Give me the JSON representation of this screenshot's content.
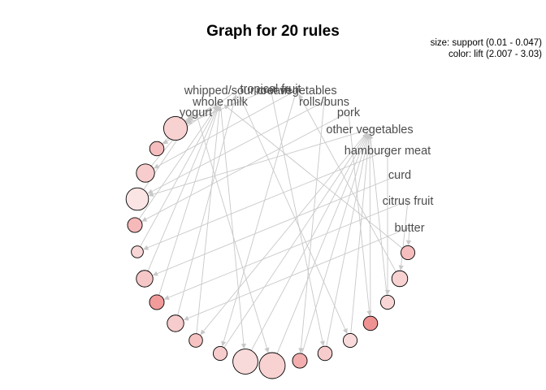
{
  "title": "Graph for 20 rules",
  "legend": {
    "size": "size: support (0.01 - 0.047)",
    "color": "color: lift (2.007 - 3.03)"
  },
  "colors": {
    "edge": "#c8c8c8",
    "label": "#4d4d4d",
    "node_outline": "#000000",
    "lift_low": "#fbe9e9",
    "lift_high": "#ee8888"
  },
  "items": [
    "tropical fruit",
    "whipped/sour cream",
    "root vegetables",
    "whole milk",
    "rolls/buns",
    "yogurt",
    "pork",
    "other vegetables",
    "hamburger meat",
    "curd",
    "citrus fruit",
    "butter"
  ],
  "rules": [
    {
      "size": 0.88,
      "shade": 0.25
    },
    {
      "size": 0.4,
      "shade": 0.45
    },
    {
      "size": 0.6,
      "shade": 0.3
    },
    {
      "size": 0.82,
      "shade": 0.05
    },
    {
      "size": 0.42,
      "shade": 0.5
    },
    {
      "size": 0.28,
      "shade": 0.2
    },
    {
      "size": 0.52,
      "shade": 0.35
    },
    {
      "size": 0.42,
      "shade": 0.8
    },
    {
      "size": 0.52,
      "shade": 0.3
    },
    {
      "size": 0.36,
      "shade": 0.4
    },
    {
      "size": 0.38,
      "shade": 0.3
    },
    {
      "size": 0.95,
      "shade": 0.15
    },
    {
      "size": 1.0,
      "shade": 0.25
    },
    {
      "size": 0.42,
      "shade": 0.6
    },
    {
      "size": 0.4,
      "shade": 0.3
    },
    {
      "size": 0.38,
      "shade": 0.15
    },
    {
      "size": 0.4,
      "shade": 0.9
    },
    {
      "size": 0.38,
      "shade": 0.2
    },
    {
      "size": 0.48,
      "shade": 0.25
    },
    {
      "size": 0.38,
      "shade": 0.45
    }
  ],
  "edges": [
    [
      "tropical fruit",
      0
    ],
    [
      "whole milk",
      0
    ],
    [
      0,
      "yogurt"
    ],
    [
      "whipped/sour cream",
      1
    ],
    [
      1,
      "yogurt"
    ],
    [
      "root vegetables",
      2
    ],
    [
      2,
      "yogurt"
    ],
    [
      "other vegetables",
      3
    ],
    [
      "rolls/buns",
      3
    ],
    [
      3,
      "yogurt"
    ],
    [
      "pork",
      4
    ],
    [
      4,
      "whole milk"
    ],
    [
      "hamburger meat",
      5
    ],
    [
      5,
      "whole milk"
    ],
    [
      "curd",
      6
    ],
    [
      6,
      "whole milk"
    ],
    [
      "citrus fruit",
      7
    ],
    [
      7,
      "whole milk"
    ],
    [
      "butter",
      8
    ],
    [
      8,
      "whipped/sour cream"
    ],
    [
      "other vegetables",
      9
    ],
    [
      9,
      "whole milk"
    ],
    [
      "root vegetables",
      10
    ],
    [
      10,
      "other vegetables"
    ],
    [
      "whole milk",
      11
    ],
    [
      11,
      "other vegetables"
    ],
    [
      "yogurt",
      12
    ],
    [
      12,
      "other vegetables"
    ],
    [
      "rolls/buns",
      13
    ],
    [
      13,
      "other vegetables"
    ],
    [
      "tropical fruit",
      14
    ],
    [
      14,
      "other vegetables"
    ],
    [
      "whipped/sour cream",
      15
    ],
    [
      15,
      "other vegetables"
    ],
    [
      "pork",
      16
    ],
    [
      16,
      "other vegetables"
    ],
    [
      "hamburger meat",
      17
    ],
    [
      17,
      "other vegetables"
    ],
    [
      "citrus fruit",
      18
    ],
    [
      18,
      "root vegetables"
    ],
    [
      "butter",
      19
    ],
    [
      19,
      "whole milk"
    ]
  ]
}
